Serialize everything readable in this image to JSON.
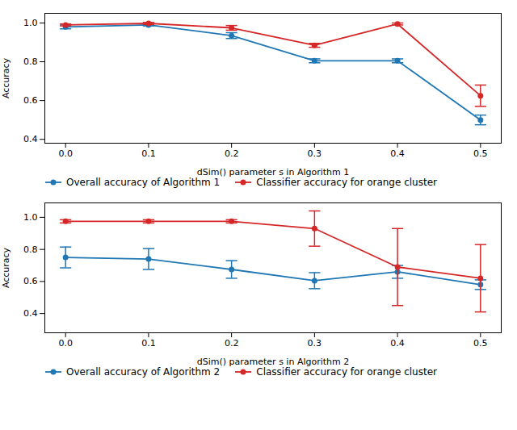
{
  "chart_data": [
    {
      "type": "line",
      "x": [
        0.0,
        0.1,
        0.2,
        0.3,
        0.4,
        0.5
      ],
      "xlabel": "dSim() parameter s in Algorithm 1",
      "ylabel": "Accuracy",
      "xlim": [
        -0.025,
        0.525
      ],
      "xticks": [
        {
          "value": 0.0,
          "label": "0.0"
        },
        0.1,
        0.2,
        0.3,
        0.4,
        0.5
      ],
      "ylim": [
        0.38,
        1.05
      ],
      "yticks": [
        0.4,
        0.6,
        0.8,
        {
          "value": 1.0,
          "label": "1.0"
        }
      ],
      "grid": false,
      "legend": "lower left",
      "marker": "circle",
      "series": [
        {
          "name": "Overall accuracy of Algorithm 1",
          "color": "#1f77b4",
          "values": [
            0.98,
            0.99,
            0.935,
            0.805,
            0.805,
            0.5
          ],
          "errors": [
            0.01,
            0.005,
            0.015,
            0.01,
            0.01,
            0.025
          ]
        },
        {
          "name": "Classifier accuracy for orange cluster",
          "color": "#d62728",
          "values": [
            0.99,
            0.998,
            0.975,
            0.885,
            0.995,
            0.625
          ],
          "errors": [
            0.005,
            0.005,
            0.012,
            0.01,
            0.005,
            0.055
          ]
        }
      ]
    },
    {
      "type": "line",
      "x": [
        0.0,
        0.1,
        0.2,
        0.3,
        0.4,
        0.5
      ],
      "xlabel": "dSim() parameter s in Algorithm 2",
      "ylabel": "Accuracy",
      "xlim": [
        -0.025,
        0.525
      ],
      "xticks": [
        {
          "value": 0.0,
          "label": "0.0"
        },
        0.1,
        0.2,
        0.3,
        0.4,
        0.5
      ],
      "ylim": [
        0.28,
        1.09
      ],
      "yticks": [
        0.4,
        0.6,
        0.8,
        {
          "value": 1.0,
          "label": "1.0"
        }
      ],
      "grid": false,
      "legend": "lower left",
      "marker": "circle",
      "series": [
        {
          "name": "Overall accuracy of Algorithm 2",
          "color": "#1f77b4",
          "values": [
            0.75,
            0.74,
            0.675,
            0.605,
            0.66,
            0.58
          ],
          "errors": [
            0.065,
            0.065,
            0.055,
            0.05,
            0.04,
            0.03
          ]
        },
        {
          "name": "Classifier accuracy for orange cluster",
          "color": "#d62728",
          "values": [
            0.975,
            0.975,
            0.975,
            0.93,
            0.69,
            0.62
          ],
          "errors": [
            0.01,
            0.01,
            0.01,
            0.11,
            0.24,
            0.21
          ]
        }
      ]
    }
  ]
}
